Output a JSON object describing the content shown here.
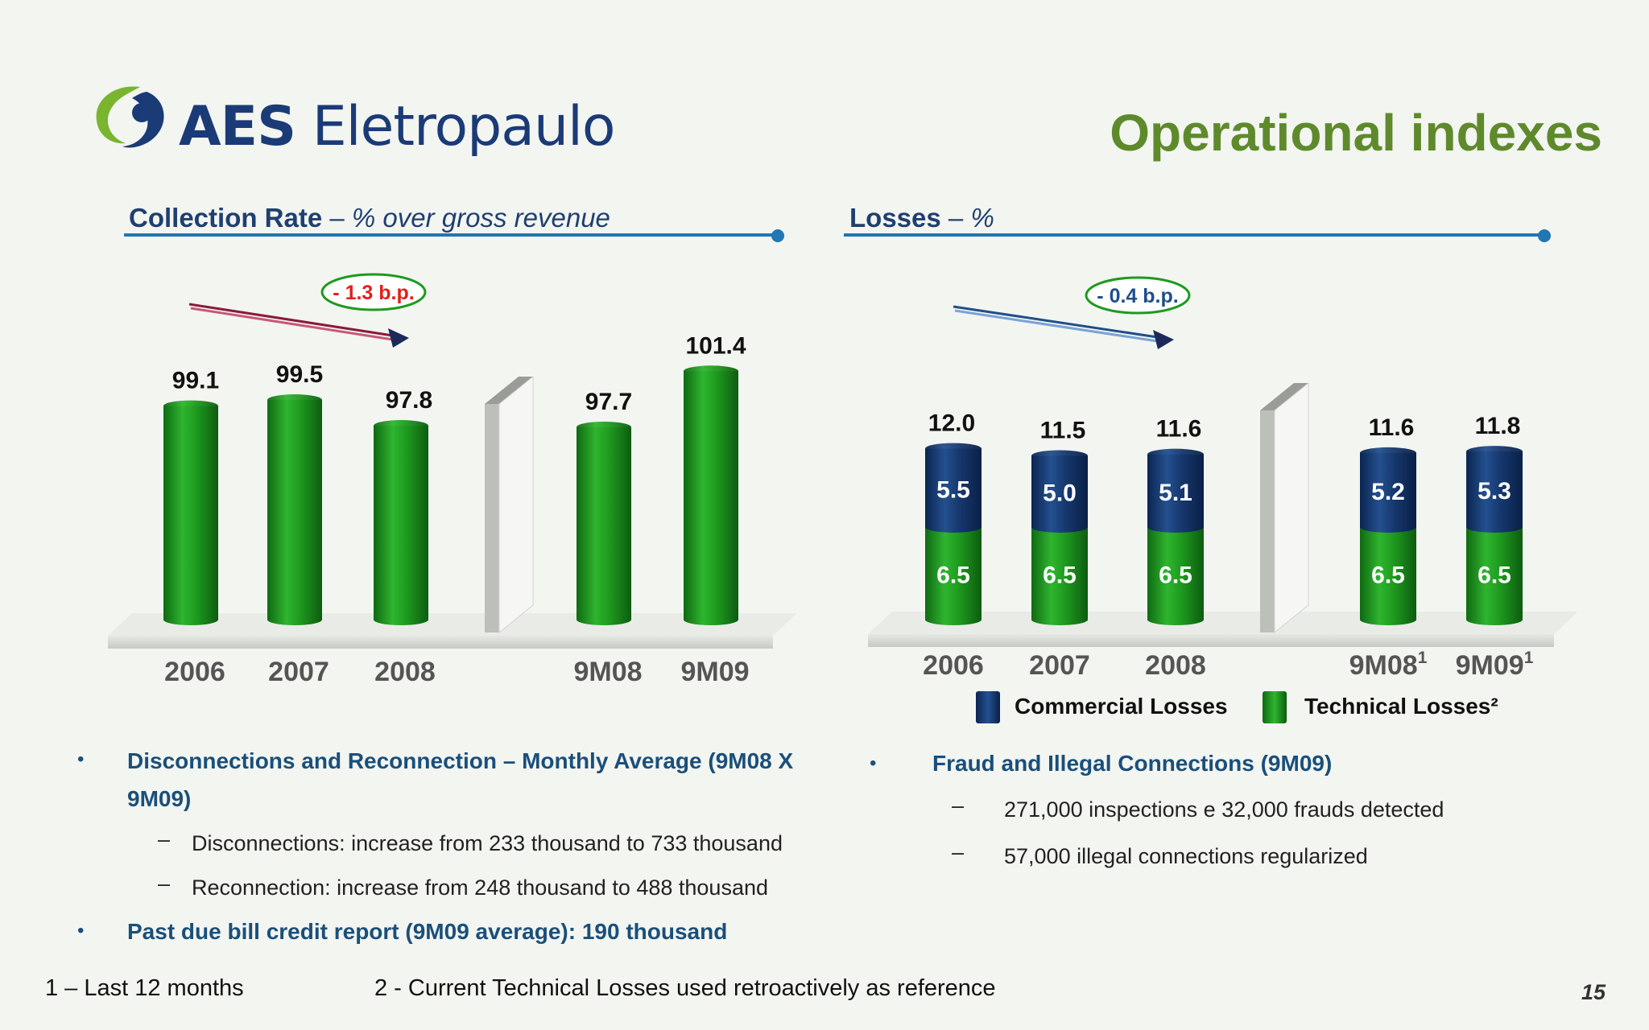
{
  "header": {
    "logo_bold": "AES",
    "logo_light": "Eletropaulo",
    "title": "Operational indexes"
  },
  "colors": {
    "green": "#1e9a1e",
    "navy": "#16386e",
    "title_green": "#5f8a2c",
    "rule_blue": "#1f77b4",
    "badge_red": "#e0201c",
    "badge_blue": "#1f4f8a"
  },
  "sections": {
    "collection": {
      "title_bold": "Collection Rate",
      "title_sep": " – ",
      "title_italic": "% over gross revenue"
    },
    "losses": {
      "title_bold": "Losses",
      "title_sep": " – ",
      "title_italic": "%"
    }
  },
  "chart_data": [
    {
      "type": "bar",
      "title": "Collection Rate – % over gross revenue",
      "categories": [
        "2006",
        "2007",
        "2008",
        "9M08",
        "9M09"
      ],
      "values": [
        99.1,
        99.5,
        97.8,
        97.7,
        101.4
      ],
      "value_labels": [
        "99.1",
        "99.5",
        "97.8",
        "97.7",
        "101.4"
      ],
      "annotation": "- 1.3 b.p.",
      "xlabel": "",
      "ylabel": ""
    },
    {
      "type": "bar",
      "stacked": true,
      "title": "Losses – %",
      "categories": [
        "2006",
        "2007",
        "2008",
        "9M08",
        "9M09"
      ],
      "category_superscripts": [
        "",
        "",
        "",
        "1",
        "1"
      ],
      "totals": [
        12.0,
        11.5,
        11.6,
        11.6,
        11.8
      ],
      "total_labels": [
        "12.0",
        "11.5",
        "11.6",
        "11.6",
        "11.8"
      ],
      "series": [
        {
          "name": "Commercial Losses",
          "values": [
            5.5,
            5.0,
            5.1,
            5.2,
            5.3
          ],
          "labels": [
            "5.5",
            "5.0",
            "5.1",
            "5.2",
            "5.3"
          ],
          "color": "#16386e"
        },
        {
          "name": "Technical Losses²",
          "values": [
            6.5,
            6.5,
            6.5,
            6.5,
            6.5
          ],
          "labels": [
            "6.5",
            "6.5",
            "6.5",
            "6.5",
            "6.5"
          ],
          "color": "#1e9a1e"
        }
      ],
      "annotation": "- 0.4 b.p.",
      "legend": "bottom"
    }
  ],
  "left_bullets": [
    {
      "text": "Disconnections and Reconnection – Monthly Average (9M08 X 9M09)",
      "subs": [
        "Disconnections: increase from 233 thousand to 733 thousand",
        "Reconnection: increase from 248 thousand to 488 thousand"
      ]
    },
    {
      "text": "Past due bill credit report (9M09 average): 190 thousand"
    }
  ],
  "right_bullets": [
    {
      "text": "Fraud and Illegal Connections (9M09)",
      "subs": [
        "271,000 inspections e 32,000 frauds detected",
        "57,000 illegal connections regularized"
      ]
    }
  ],
  "markers": {
    "bullet": "•",
    "dash": "–"
  },
  "footer": {
    "note1": "1 – Last 12 months",
    "note2": "2 - Current Technical Losses used retroactively as reference",
    "page": "15"
  }
}
